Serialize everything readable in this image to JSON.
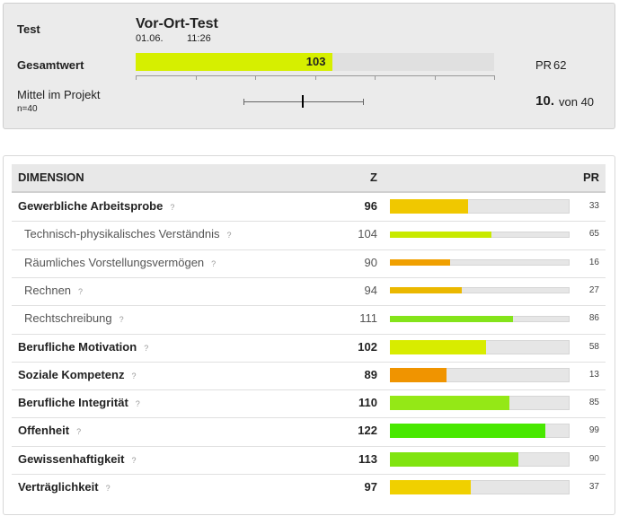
{
  "header": {
    "test_label": "Test",
    "test_name": "Vor-Ort-Test",
    "date": "01.06.",
    "time": "11:26",
    "total_label": "Gesamtwert",
    "total_value": 103,
    "total_color": "#d6ef00",
    "pr_label": "PR",
    "pr": 62,
    "mean_label": "Mittel im Projekt",
    "n_label": "n=40",
    "mean": {
      "low": 88,
      "value": 98,
      "high": 108
    },
    "rank": "10.",
    "rank_of": "von 40"
  },
  "scale": {
    "min": 70,
    "max": 130,
    "ticks": [
      70,
      80,
      90,
      100,
      110,
      120,
      130
    ]
  },
  "table": {
    "columns": [
      "DIMENSION",
      "Z",
      "PR"
    ],
    "help": "?",
    "rows": [
      {
        "name": "Gewerbliche Arbeitsprobe",
        "main": true,
        "z": 96,
        "pr": 33,
        "color": "#f0c800"
      },
      {
        "name": "Technisch-physikalisches Verständnis",
        "main": false,
        "z": 104,
        "pr": 65,
        "color": "#c8ea00"
      },
      {
        "name": "Räumliches Vorstellungsvermögen",
        "main": false,
        "z": 90,
        "pr": 16,
        "color": "#f0a000"
      },
      {
        "name": "Rechnen",
        "main": false,
        "z": 94,
        "pr": 27,
        "color": "#ebb800"
      },
      {
        "name": "Rechtschreibung",
        "main": false,
        "z": 111,
        "pr": 86,
        "color": "#84e41a"
      },
      {
        "name": "Berufliche Motivation",
        "main": true,
        "z": 102,
        "pr": 58,
        "color": "#d8ec00"
      },
      {
        "name": "Soziale Kompetenz",
        "main": true,
        "z": 89,
        "pr": 13,
        "color": "#f09400"
      },
      {
        "name": "Berufliche Integrität",
        "main": true,
        "z": 110,
        "pr": 85,
        "color": "#94e816"
      },
      {
        "name": "Offenheit",
        "main": true,
        "z": 122,
        "pr": 99,
        "color": "#48e800"
      },
      {
        "name": "Gewissenhaftigkeit",
        "main": true,
        "z": 113,
        "pr": 90,
        "color": "#80e410"
      },
      {
        "name": "Verträglichkeit",
        "main": true,
        "z": 97,
        "pr": 37,
        "color": "#f0d000"
      }
    ]
  }
}
